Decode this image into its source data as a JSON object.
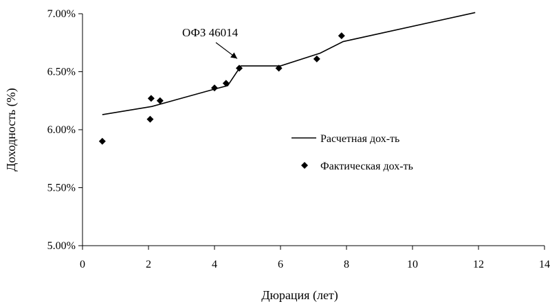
{
  "chart_data": {
    "type": "line",
    "title": "",
    "xlabel": "Дюрация (лет)",
    "ylabel": "Доходность (%)",
    "xlim": [
      0,
      14
    ],
    "ylim": [
      5.0,
      7.0
    ],
    "x_ticks": [
      0,
      2,
      4,
      6,
      8,
      10,
      12,
      14
    ],
    "x_tick_labels": [
      "0",
      "2",
      "4",
      "6",
      "8",
      "10",
      "12",
      "14"
    ],
    "y_ticks": [
      5.0,
      5.5,
      6.0,
      6.5,
      7.0
    ],
    "y_tick_labels": [
      "5.00%",
      "5.50%",
      "6.00%",
      "6.50%",
      "7.00%"
    ],
    "grid": false,
    "legend_position": "center-right",
    "series": [
      {
        "name": "Расчетная дох-ть",
        "type": "line",
        "color": "#000000",
        "x": [
          0.6,
          2.1,
          4.0,
          4.4,
          4.8,
          6.0,
          7.2,
          7.9,
          11.9
        ],
        "y": [
          6.13,
          6.2,
          6.35,
          6.38,
          6.55,
          6.55,
          6.66,
          6.76,
          7.01
        ]
      },
      {
        "name": "Фактическая дох-ть",
        "type": "scatter",
        "marker": "diamond",
        "color": "#000000",
        "x": [
          0.6,
          2.05,
          2.08,
          2.35,
          4.0,
          4.35,
          4.75,
          5.95,
          7.1,
          7.85
        ],
        "y": [
          5.9,
          6.09,
          6.27,
          6.25,
          6.36,
          6.4,
          6.53,
          6.53,
          6.61,
          6.81
        ]
      }
    ],
    "annotations": [
      {
        "text": "ОФЗ 46014",
        "x": 4.75,
        "y": 6.53
      }
    ]
  }
}
